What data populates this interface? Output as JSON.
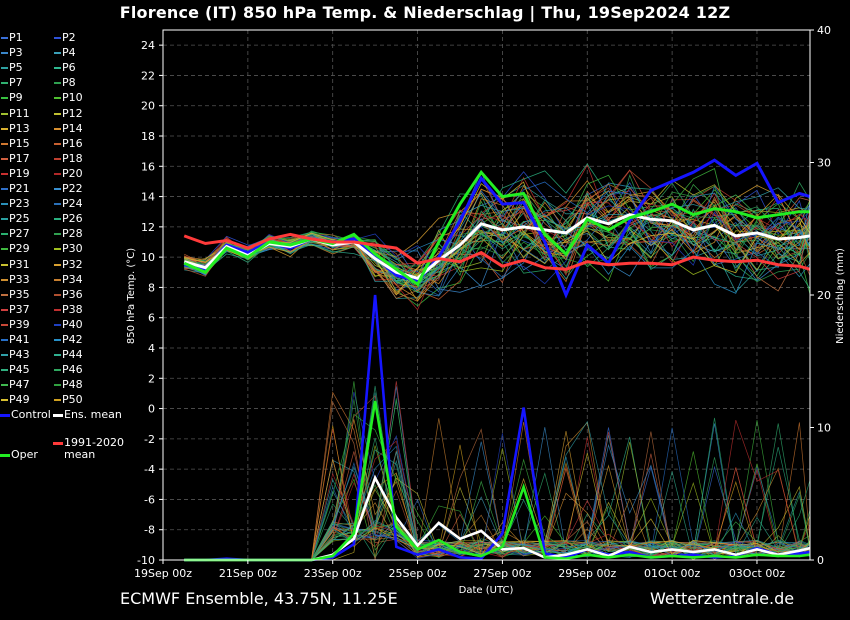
{
  "title": "Florence  (IT)  850 hPa Temp. & Niederschlag | Thu, 19Sep2024 12Z",
  "footer_left": "ECMWF Ensemble, 43.75N, 11.25E",
  "footer_right": "Wetterzentrale.de",
  "legend": {
    "members": [
      "P1",
      "P2",
      "P3",
      "P4",
      "P5",
      "P6",
      "P7",
      "P8",
      "P9",
      "P10",
      "P11",
      "P12",
      "P13",
      "P14",
      "P15",
      "P16",
      "P17",
      "P18",
      "P19",
      "P20",
      "P21",
      "P22",
      "P23",
      "P24",
      "P25",
      "P26",
      "P27",
      "P28",
      "P29",
      "P30",
      "P31",
      "P32",
      "P33",
      "P34",
      "P35",
      "P36",
      "P37",
      "P38",
      "P39",
      "P40",
      "P41",
      "P42",
      "P43",
      "P44",
      "P45",
      "P46",
      "P47",
      "P48",
      "P49",
      "P50"
    ],
    "member_colors": [
      "#3a6fd8",
      "#2f52d8",
      "#3a86c8",
      "#3aa0b8",
      "#2ea0a0",
      "#2fb890",
      "#30b070",
      "#2fa050",
      "#38c040",
      "#50c030",
      "#a0c030",
      "#c0c030",
      "#d8b030",
      "#d89030",
      "#d07830",
      "#c86030",
      "#d06040",
      "#c04030",
      "#c83030",
      "#b02828",
      "#3070c8",
      "#3a90d0",
      "#2a90b8",
      "#2a70b8",
      "#2aa0a0",
      "#2ab080",
      "#2ab070",
      "#30a050",
      "#40b840",
      "#a0c020",
      "#c8c030",
      "#d8a030",
      "#d09030",
      "#c88030",
      "#c07040",
      "#b05030",
      "#d04040",
      "#c03030",
      "#c84838",
      "#2040c0",
      "#2870c8",
      "#2890c8",
      "#30a0a8",
      "#30b090",
      "#30b080",
      "#30a860",
      "#40b850",
      "#30a040",
      "#d8c030",
      "#d0a020"
    ],
    "control": "Control",
    "ens_mean": "Ens. mean",
    "oper": "Oper",
    "clim_mean_line1": "1991-2020",
    "clim_mean_line2": "mean"
  },
  "colors": {
    "control": "#1515ff",
    "ens_mean": "#ffffff",
    "oper": "#22ee22",
    "clim_mean": "#ff3a3a",
    "grid": "#555555",
    "background": "#000000"
  },
  "chart_data": {
    "type": "line",
    "xlabel": "Date (UTC)",
    "ylabel_left": "850 hPa Temp. (°C)",
    "ylabel_right": "Niederschlag (mm)",
    "x_ticks": [
      "19Sep 00z",
      "21Sep 00z",
      "23Sep 00z",
      "25Sep 00z",
      "27Sep 00z",
      "29Sep 00z",
      "01Oct 00z",
      "03Oct 00z"
    ],
    "x_tick_days": [
      0,
      2,
      4,
      6,
      8,
      10,
      12,
      14
    ],
    "x_range_days": [
      0,
      15.25
    ],
    "ylim_left": [
      -10,
      25
    ],
    "yticks_left": [
      -10,
      -8,
      -6,
      -4,
      -2,
      0,
      2,
      4,
      6,
      8,
      10,
      12,
      14,
      16,
      18,
      20,
      22,
      24
    ],
    "ylim_right": [
      0,
      40
    ],
    "yticks_right": [
      0,
      10,
      20,
      30,
      40
    ],
    "grid": true,
    "temp_day_axis": [
      0.5,
      1,
      1.5,
      2,
      2.5,
      3,
      3.5,
      4,
      4.5,
      5,
      5.5,
      6,
      6.5,
      7,
      7.5,
      8,
      8.5,
      9,
      9.5,
      10,
      10.5,
      11,
      11.5,
      12,
      12.5,
      13,
      13.5,
      14,
      14.5,
      15,
      15.25
    ],
    "temp_series": [
      {
        "name": "Control",
        "values": [
          9.5,
          9.2,
          10.8,
          10.3,
          11.0,
          10.6,
          11.2,
          11.0,
          11.2,
          10.0,
          8.8,
          8.4,
          10.0,
          12.4,
          15.2,
          13.5,
          13.6,
          11.0,
          7.5,
          10.8,
          9.6,
          12.4,
          14.4,
          15.0,
          15.6,
          16.4,
          15.4,
          16.2,
          13.6,
          14.2,
          14.0
        ]
      },
      {
        "name": "Ens. mean",
        "values": [
          9.7,
          9.3,
          10.7,
          10.1,
          10.9,
          10.7,
          11.2,
          10.8,
          11.0,
          9.9,
          9.0,
          8.6,
          9.8,
          10.8,
          12.2,
          11.8,
          12.0,
          11.8,
          11.6,
          12.6,
          12.2,
          12.8,
          12.5,
          12.4,
          11.8,
          12.1,
          11.4,
          11.6,
          11.2,
          11.3,
          11.4
        ]
      },
      {
        "name": "Oper",
        "values": [
          9.6,
          9.0,
          10.6,
          10.0,
          11.0,
          10.8,
          11.2,
          10.9,
          11.5,
          10.2,
          9.2,
          8.2,
          11.0,
          13.5,
          15.6,
          14.0,
          14.2,
          11.5,
          10.2,
          12.5,
          11.8,
          12.6,
          13.0,
          13.5,
          12.8,
          13.2,
          13.0,
          12.6,
          12.8,
          13.0,
          13.0
        ]
      },
      {
        "name": "1991-2020 mean",
        "values": [
          11.4,
          10.9,
          11.1,
          10.6,
          11.2,
          11.5,
          11.2,
          11.0,
          11.0,
          10.8,
          10.6,
          9.6,
          9.9,
          9.7,
          10.3,
          9.4,
          9.8,
          9.3,
          9.2,
          9.7,
          9.5,
          9.6,
          9.6,
          9.5,
          10.0,
          9.8,
          9.7,
          9.8,
          9.5,
          9.4,
          9.2
        ]
      }
    ],
    "precip_day_axis": [
      0.5,
      1,
      1.5,
      2,
      2.5,
      3,
      3.5,
      4,
      4.5,
      5,
      5.5,
      6,
      6.5,
      7,
      7.5,
      8,
      8.5,
      9,
      9.5,
      10,
      10.5,
      11,
      11.5,
      12,
      12.5,
      13,
      13.5,
      14,
      14.5,
      15,
      15.25
    ],
    "precip_series": [
      {
        "name": "Control",
        "values": [
          0,
          0,
          0.1,
          0,
          0,
          0,
          0,
          0.2,
          1.2,
          20.0,
          1.0,
          0.4,
          0.8,
          0.2,
          0.1,
          2.0,
          11.5,
          0.5,
          0.2,
          0.8,
          0.4,
          0.6,
          0.2,
          0.3,
          0.4,
          0.2,
          0.3,
          0.9,
          0.4,
          0.5,
          0.6
        ]
      },
      {
        "name": "Ens. mean",
        "values": [
          0,
          0,
          0,
          0,
          0,
          0,
          0,
          0.4,
          1.6,
          6.2,
          3.2,
          1.1,
          2.8,
          1.6,
          2.2,
          0.8,
          0.9,
          0.2,
          0.4,
          0.8,
          0.3,
          1.0,
          0.6,
          0.8,
          0.6,
          0.8,
          0.4,
          0.8,
          0.4,
          0.7,
          0.9
        ]
      },
      {
        "name": "Oper",
        "values": [
          0,
          0,
          0,
          0,
          0,
          0,
          0,
          0.3,
          2.0,
          12.0,
          2.5,
          0.8,
          1.5,
          0.6,
          0.3,
          1.0,
          5.5,
          0.2,
          0.1,
          0.4,
          0.2,
          0.4,
          0.2,
          0.3,
          0.2,
          0.3,
          0.2,
          0.4,
          0.3,
          0.3,
          0.4
        ]
      }
    ]
  }
}
